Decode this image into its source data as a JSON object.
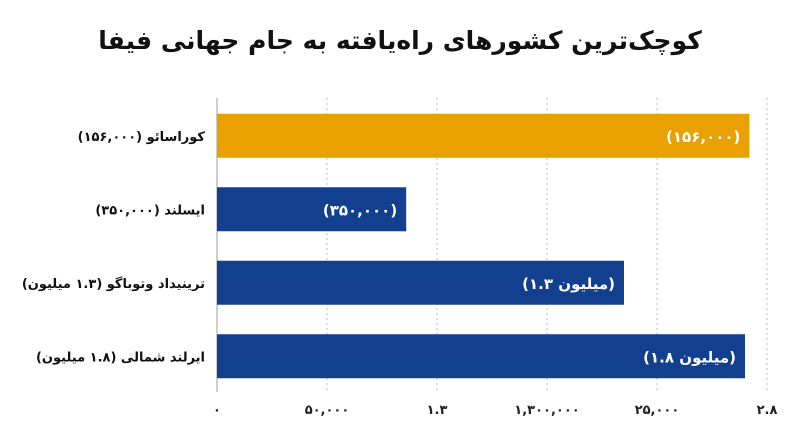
{
  "chart_data": {
    "type": "bar",
    "orientation": "horizontal",
    "title": "کوچک‌ترین کشورهای راه‌یافته به جام جهانی فیفا",
    "xlabel": "",
    "ylabel": "",
    "categories": [
      "کوراسائو (۱۵۶,۰۰۰)",
      "ایسلند (۳۵۰,۰۰۰)",
      "ترینیداد وتوباگو (۱.۳ میلیون)",
      "ایرلند شمالی (۱.۸ میلیون)"
    ],
    "values": [
      2.42,
      0.86,
      1.85,
      2.4
    ],
    "data_labels": [
      "(۱۵۶,۰۰۰)",
      "(۳۵۰,۰۰۰)",
      "(۱.۳ میلیون)",
      "(۱.۸ میلیون)"
    ],
    "bar_colors": [
      "#E8A100",
      "#133F8F",
      "#133F8F",
      "#133F8F"
    ],
    "x_ticks": [
      {
        "value": 0,
        "label": "۰"
      },
      {
        "value": 0.5,
        "label": "۵۰,۰۰۰"
      },
      {
        "value": 1.0,
        "label": "۱.۳"
      },
      {
        "value": 1.5,
        "label": "۱,۳۰۰,۰۰۰"
      },
      {
        "value": 2.0,
        "label": "۲۵,۰۰۰"
      },
      {
        "value": 2.5,
        "label": "۲.۸"
      }
    ],
    "xlim": [
      0,
      2.5
    ],
    "grid": true
  }
}
